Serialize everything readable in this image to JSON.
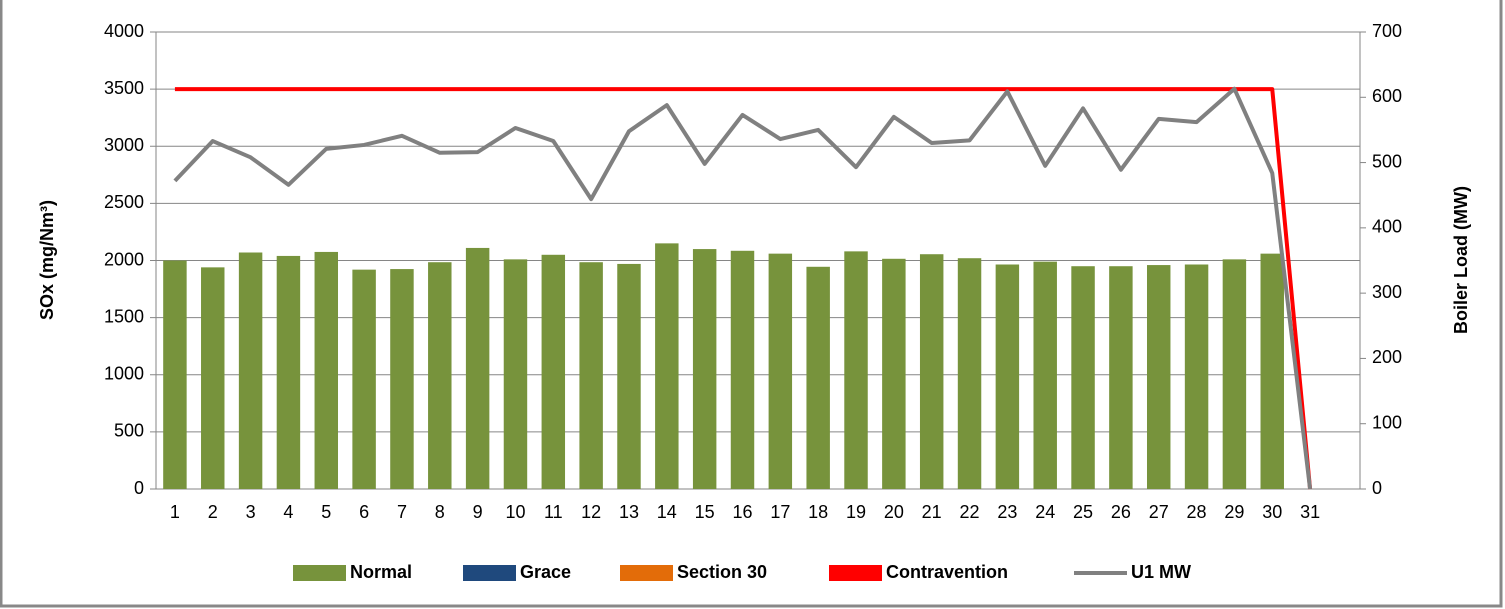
{
  "chart_data": {
    "type": "bar",
    "y_label": "SOx (mg/Nm³)",
    "y2_label": "Boiler Load (MW)",
    "categories": [
      "1",
      "2",
      "3",
      "4",
      "5",
      "6",
      "7",
      "8",
      "9",
      "10",
      "11",
      "12",
      "13",
      "14",
      "15",
      "16",
      "17",
      "18",
      "19",
      "20",
      "21",
      "22",
      "23",
      "24",
      "25",
      "26",
      "27",
      "28",
      "29",
      "30",
      "31"
    ],
    "ylim": [
      0,
      4000
    ],
    "yticks": [
      0,
      500,
      1000,
      1500,
      2000,
      2500,
      3000,
      3500,
      4000
    ],
    "y2lim": [
      0,
      700
    ],
    "y2ticks": [
      0,
      100,
      200,
      300,
      400,
      500,
      600,
      700
    ],
    "grid": true,
    "legend": "bottom",
    "series": [
      {
        "name": "Normal",
        "type": "bar",
        "color": "#77933c",
        "values": [
          2000,
          1940,
          2070,
          2040,
          2075,
          1920,
          1925,
          1985,
          2110,
          2010,
          2050,
          1985,
          1970,
          2150,
          2100,
          2085,
          2060,
          1945,
          2080,
          2015,
          2055,
          2020,
          1965,
          1990,
          1950,
          1950,
          1960,
          1965,
          2010,
          2060,
          0
        ]
      },
      {
        "name": "Grace",
        "type": "bar",
        "color": "#1f497d",
        "values": [
          null,
          null,
          null,
          null,
          null,
          null,
          null,
          null,
          null,
          null,
          null,
          null,
          null,
          null,
          null,
          null,
          null,
          null,
          null,
          null,
          null,
          null,
          null,
          null,
          null,
          null,
          null,
          null,
          null,
          null,
          null
        ]
      },
      {
        "name": "Section 30",
        "type": "bar",
        "color": "#e36c09",
        "values": [
          null,
          null,
          null,
          null,
          null,
          null,
          null,
          null,
          null,
          null,
          null,
          null,
          null,
          null,
          null,
          null,
          null,
          null,
          null,
          null,
          null,
          null,
          null,
          null,
          null,
          null,
          null,
          null,
          null,
          null,
          null
        ]
      },
      {
        "name": "Contravention",
        "type": "line",
        "color": "#ff0000",
        "values": [
          3500,
          3500,
          3500,
          3500,
          3500,
          3500,
          3500,
          3500,
          3500,
          3500,
          3500,
          3500,
          3500,
          3500,
          3500,
          3500,
          3500,
          3500,
          3500,
          3500,
          3500,
          3500,
          3500,
          3500,
          3500,
          3500,
          3500,
          3500,
          3500,
          3500,
          0
        ]
      },
      {
        "name": "U1 MW",
        "type": "line",
        "axis": "y2",
        "color": "#808080",
        "values": [
          472,
          533,
          508,
          466,
          521,
          527,
          541,
          515,
          516,
          553,
          533,
          444,
          548,
          588,
          498,
          573,
          536,
          550,
          493,
          570,
          530,
          534,
          609,
          495,
          583,
          489,
          567,
          562,
          613,
          484,
          0
        ]
      }
    ]
  }
}
